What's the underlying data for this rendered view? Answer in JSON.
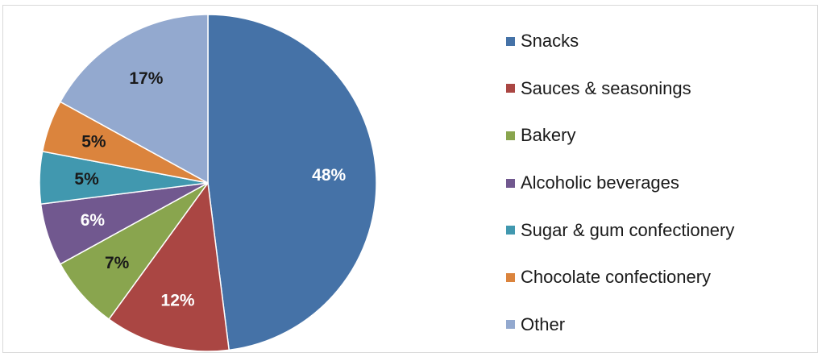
{
  "chart_data": {
    "type": "pie",
    "legend_position": "right",
    "slices": [
      {
        "label": "Snacks",
        "value": 48,
        "display": "48%",
        "color": "#4572a7",
        "label_color": "#ffffff"
      },
      {
        "label": "Sauces & seasonings",
        "value": 12,
        "display": "12%",
        "color": "#aa4643",
        "label_color": "#ffffff"
      },
      {
        "label": "Bakery",
        "value": 7,
        "display": "7%",
        "color": "#89a54e",
        "label_color": "#1a1a1a"
      },
      {
        "label": "Alcoholic beverages",
        "value": 6,
        "display": "6%",
        "color": "#71588f",
        "label_color": "#ffffff"
      },
      {
        "label": "Sugar & gum confectionery",
        "value": 5,
        "display": "5%",
        "color": "#4198af",
        "label_color": "#1a1a1a"
      },
      {
        "label": "Chocolate confectionery",
        "value": 5,
        "display": "5%",
        "color": "#db843d",
        "label_color": "#1a1a1a"
      },
      {
        "label": "Other",
        "value": 17,
        "display": "17%",
        "color": "#93a9cf",
        "label_color": "#1a1a1a"
      }
    ]
  }
}
